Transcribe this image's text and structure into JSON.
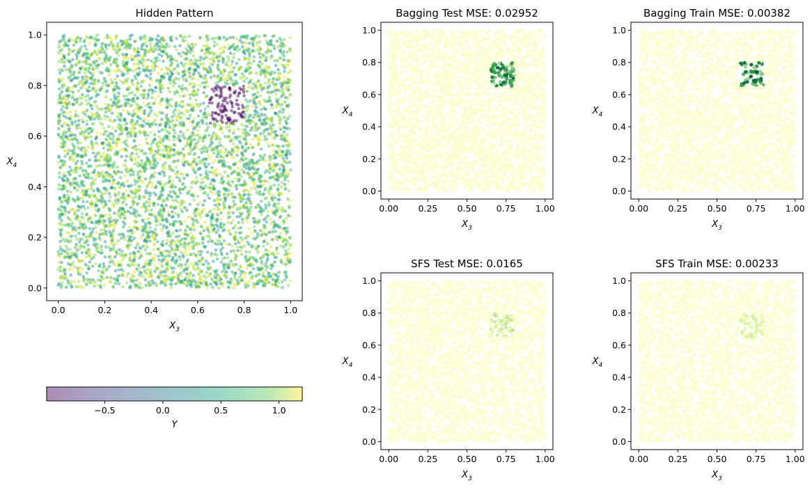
{
  "chart_data": [
    {
      "type": "scatter",
      "title": "Hidden Pattern",
      "xlabel": "X_3",
      "ylabel": "X_4",
      "xlim": [
        -0.05,
        1.05
      ],
      "ylim": [
        -0.05,
        1.05
      ],
      "xticks": [
        "0.0",
        "0.2",
        "0.4",
        "0.6",
        "0.8",
        "1.0"
      ],
      "yticks": [
        "0.0",
        "0.2",
        "0.4",
        "0.6",
        "0.8",
        "1.0"
      ],
      "colormap": "viridis",
      "alpha": 0.5,
      "n_points_approx": 5000,
      "description_of_values": "Y mostly between 0 and 1.2 uniformly over the unit square; Y about -1 inside the region X3 in [0.65,0.80], X4 in [0.65,0.80]",
      "background_value_range": [
        0.0,
        1.2
      ],
      "pattern_region": {
        "x": [
          0.65,
          0.8
        ],
        "y": [
          0.65,
          0.8
        ],
        "value": -1.0
      }
    },
    {
      "type": "colorbar",
      "label": "Y",
      "colormap": "viridis",
      "range": [
        -1.0,
        1.2
      ],
      "ticks": [
        "−0.5",
        "0.0",
        "0.5",
        "1.0"
      ],
      "tick_values": [
        -0.5,
        0.0,
        0.5,
        1.0
      ]
    },
    {
      "type": "scatter",
      "title": "Bagging Test MSE: 0.02952",
      "xlabel": "X_3",
      "ylabel": "X_4",
      "xlim": [
        -0.05,
        1.05
      ],
      "ylim": [
        -0.05,
        1.05
      ],
      "xticks": [
        "0.00",
        "0.25",
        "0.50",
        "0.75",
        "1.00"
      ],
      "yticks": [
        "0.0",
        "0.2",
        "0.4",
        "0.6",
        "0.8",
        "1.0"
      ],
      "colormap": "YlGn",
      "background_intensity": 0.06,
      "highlight_region": {
        "x": [
          0.65,
          0.8
        ],
        "y": [
          0.65,
          0.8
        ],
        "intensity": 0.75
      }
    },
    {
      "type": "scatter",
      "title": "Bagging Train MSE: 0.00382",
      "xlabel": "X_3",
      "ylabel": "X_4",
      "xlim": [
        -0.05,
        1.05
      ],
      "ylim": [
        -0.05,
        1.05
      ],
      "xticks": [
        "0.00",
        "0.25",
        "0.50",
        "0.75",
        "1.00"
      ],
      "yticks": [
        "0.0",
        "0.2",
        "0.4",
        "0.6",
        "0.8",
        "1.0"
      ],
      "colormap": "YlGn",
      "background_intensity": 0.05,
      "highlight_region": {
        "x": [
          0.65,
          0.8
        ],
        "y": [
          0.65,
          0.8
        ],
        "intensity": 0.8
      }
    },
    {
      "type": "scatter",
      "title": "SFS Test MSE: 0.0165",
      "xlabel": "X_3",
      "ylabel": "X_4",
      "xlim": [
        -0.05,
        1.05
      ],
      "ylim": [
        -0.05,
        1.05
      ],
      "xticks": [
        "0.00",
        "0.25",
        "0.50",
        "0.75",
        "1.00"
      ],
      "yticks": [
        "0.0",
        "0.2",
        "0.4",
        "0.6",
        "0.8",
        "1.0"
      ],
      "colormap": "YlGn",
      "background_intensity": 0.05,
      "highlight_region": {
        "x": [
          0.65,
          0.8
        ],
        "y": [
          0.65,
          0.8
        ],
        "intensity": 0.3
      }
    },
    {
      "type": "scatter",
      "title": "SFS Train MSE: 0.00233",
      "xlabel": "X_3",
      "ylabel": "X_4",
      "xlim": [
        -0.05,
        1.05
      ],
      "ylim": [
        -0.05,
        1.05
      ],
      "xticks": [
        "0.00",
        "0.25",
        "0.50",
        "0.75",
        "1.00"
      ],
      "yticks": [
        "0.0",
        "0.2",
        "0.4",
        "0.6",
        "0.8",
        "1.0"
      ],
      "colormap": "YlGn",
      "background_intensity": 0.05,
      "highlight_region": {
        "x": [
          0.65,
          0.8
        ],
        "y": [
          0.65,
          0.8
        ],
        "intensity": 0.25
      }
    }
  ]
}
